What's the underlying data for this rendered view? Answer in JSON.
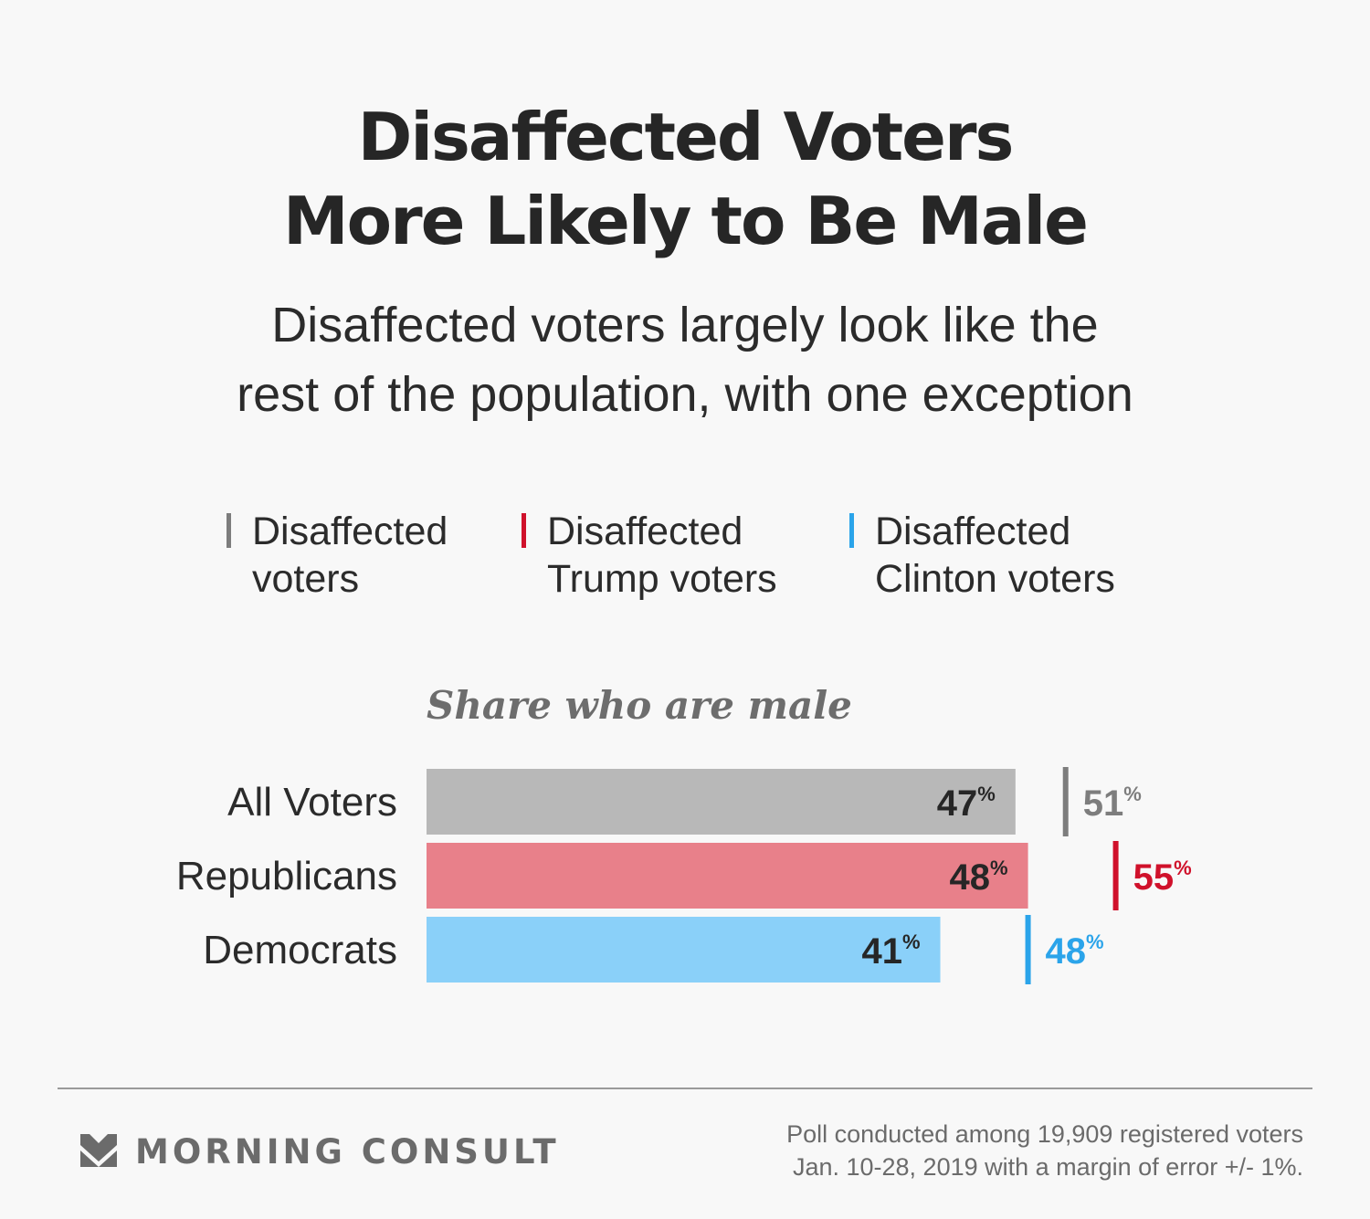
{
  "title": [
    "Disaffected Voters",
    "More Likely to Be Male"
  ],
  "subtitle": [
    "Disaffected voters largely look like the",
    "rest of the population, with one exception"
  ],
  "legend": [
    {
      "lines": [
        "Disaffected",
        "voters"
      ],
      "color": "#7d7d7d"
    },
    {
      "lines": [
        "Disaffected",
        "Trump voters"
      ],
      "color": "#d0112b"
    },
    {
      "lines": [
        "Disaffected",
        "Clinton voters"
      ],
      "color": "#2ba4ea"
    }
  ],
  "chart_data": {
    "type": "bar",
    "orientation": "horizontal",
    "title": "Share who are male",
    "unit": "%",
    "categories": [
      "All Voters",
      "Republicans",
      "Democrats"
    ],
    "series": [
      {
        "values": [
          47,
          48,
          41
        ],
        "colors": [
          "#b8b8b8",
          "#e8808a",
          "#8ad0f9"
        ],
        "label_color": "#262626"
      },
      {
        "values": [
          51,
          55,
          48
        ],
        "colors": [
          "#7d7d7d",
          "#d0112b",
          "#2ba4ea"
        ],
        "style": "marker"
      }
    ]
  },
  "footer": {
    "brand": "MORNING CONSULT",
    "source": [
      "Poll conducted among 19,909 registered voters",
      "Jan. 10-28, 2019 with a margin of error +/- 1%."
    ]
  }
}
